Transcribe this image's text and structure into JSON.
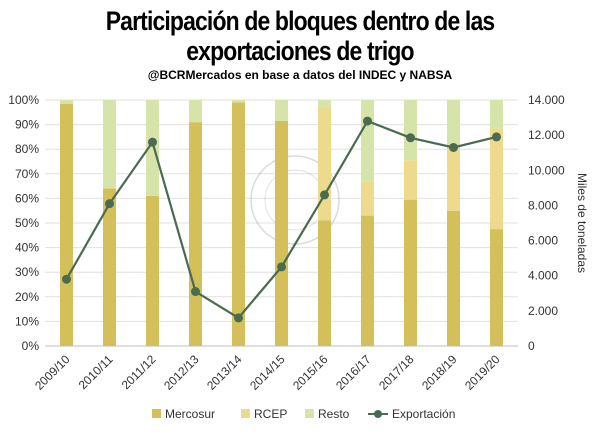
{
  "chart_data": {
    "type": "bar",
    "stacked": true,
    "title_line1": "Participación de bloques dentro de las",
    "title_line2": "exportaciones de trigo",
    "subtitle": "@BCRMercados  en base a datos del INDEC y NABSA",
    "categories": [
      "2009/10",
      "2010/11",
      "2011/12",
      "2012/13",
      "2013/14",
      "2014/15",
      "2015/16",
      "2016/17",
      "2017/18",
      "2018/19",
      "2019/20"
    ],
    "series": [
      {
        "name": "Mercosur",
        "type": "bar",
        "color": "#d4c05a",
        "values": [
          98.5,
          64,
          61,
          91,
          99,
          91.5,
          51,
          53,
          59.5,
          55,
          47.5
        ]
      },
      {
        "name": "RCEP",
        "type": "bar",
        "color": "#eeda8c",
        "values": [
          0,
          0.5,
          0,
          0,
          0,
          0,
          46,
          14,
          16,
          26,
          41
        ]
      },
      {
        "name": "Resto",
        "type": "bar",
        "color": "#d6e4aa",
        "values": [
          1.5,
          35.5,
          39,
          9,
          1,
          8.5,
          3,
          33,
          24.5,
          19,
          11.5
        ]
      },
      {
        "name": "Exportación",
        "type": "line",
        "axis": "right",
        "color": "#4a6b50",
        "values": [
          3800,
          8100,
          11600,
          3100,
          1600,
          4500,
          8600,
          12800,
          11850,
          11300,
          11900
        ]
      }
    ],
    "left_axis": {
      "ylim": [
        0,
        100
      ],
      "ticks": [
        "0%",
        "10%",
        "20%",
        "30%",
        "40%",
        "50%",
        "60%",
        "70%",
        "80%",
        "90%",
        "100%"
      ]
    },
    "right_axis": {
      "label": "Miles de toneladas",
      "ylim": [
        0,
        14000
      ],
      "ticks": [
        "0",
        "2.000",
        "4.000",
        "6.000",
        "8.000",
        "10.000",
        "12.000",
        "14.000"
      ]
    },
    "legend_position": "bottom",
    "watermark": "BOLSA DE COMERCIO DE ROSARIO"
  }
}
